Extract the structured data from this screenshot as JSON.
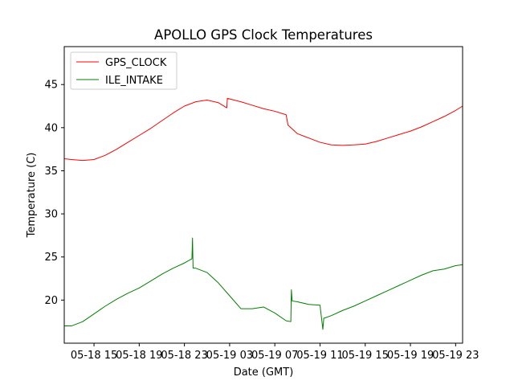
{
  "chart_data": {
    "type": "line",
    "title": "APOLLO GPS Clock Temperatures",
    "xlabel": "Date (GMT)",
    "ylabel": "Temperature (C)",
    "xlim": [
      "05-18 12:22",
      "05-19 23:37"
    ],
    "ylim": [
      15.0,
      49.4
    ],
    "grid": false,
    "legend_position": "top-left",
    "x_ticks": [
      "05-18 15",
      "05-18 19",
      "05-18 23",
      "05-19 03",
      "05-19 07",
      "05-19 11",
      "05-19 15",
      "05-19 19",
      "05-19 23"
    ],
    "y_ticks": [
      "20",
      "25",
      "30",
      "35",
      "40",
      "45"
    ],
    "series": [
      {
        "name": "GPS_CLOCK",
        "color": "#ff0000",
        "x": [
          "05-18 12:22",
          "05-18 13:00",
          "05-18 14:00",
          "05-18 15:00",
          "05-18 16:00",
          "05-18 17:00",
          "05-18 18:00",
          "05-18 19:00",
          "05-18 20:00",
          "05-18 21:00",
          "05-18 22:00",
          "05-18 23:00",
          "05-19 00:00",
          "05-19 01:00",
          "05-19 02:00",
          "05-19 02:45",
          "05-19 02:48",
          "05-19 04:00",
          "05-19 05:00",
          "05-19 06:00",
          "05-19 07:00",
          "05-19 08:00",
          "05-19 08:10",
          "05-19 09:00",
          "05-19 10:00",
          "05-19 11:00",
          "05-19 12:00",
          "05-19 13:00",
          "05-19 14:00",
          "05-19 15:00",
          "05-19 16:00",
          "05-19 17:00",
          "05-19 18:00",
          "05-19 19:00",
          "05-19 20:00",
          "05-19 21:00",
          "05-19 22:00",
          "05-19 23:00",
          "05-19 23:37"
        ],
        "y": [
          36.4,
          36.3,
          36.2,
          36.3,
          36.8,
          37.5,
          38.3,
          39.1,
          39.9,
          40.8,
          41.7,
          42.5,
          43.0,
          43.2,
          42.9,
          42.3,
          43.4,
          43.0,
          42.6,
          42.2,
          41.9,
          41.5,
          40.3,
          39.3,
          38.8,
          38.3,
          38.0,
          37.95,
          38.0,
          38.1,
          38.4,
          38.8,
          39.2,
          39.6,
          40.1,
          40.7,
          41.3,
          42.0,
          42.5
        ]
      },
      {
        "name": "ILE_INTAKE",
        "color": "#008000",
        "x": [
          "05-18 12:22",
          "05-18 13:00",
          "05-18 14:00",
          "05-18 15:00",
          "05-18 16:00",
          "05-18 17:00",
          "05-18 18:00",
          "05-18 19:00",
          "05-18 20:00",
          "05-18 21:00",
          "05-18 22:00",
          "05-18 23:00",
          "05-18 23:40",
          "05-18 23:43",
          "05-18 23:46",
          "05-19 00:00",
          "05-19 01:00",
          "05-19 02:00",
          "05-19 03:00",
          "05-19 04:00",
          "05-19 05:00",
          "05-19 06:00",
          "05-19 07:00",
          "05-19 08:00",
          "05-19 08:25",
          "05-19 08:28",
          "05-19 08:32",
          "05-19 09:00",
          "05-19 10:00",
          "05-19 11:00",
          "05-19 11:15",
          "05-19 11:20",
          "05-19 11:22",
          "05-19 12:00",
          "05-19 13:00",
          "05-19 14:00",
          "05-19 15:00",
          "05-19 16:00",
          "05-19 17:00",
          "05-19 18:00",
          "05-19 19:00",
          "05-19 20:00",
          "05-19 21:00",
          "05-19 22:00",
          "05-19 23:00",
          "05-19 23:37"
        ],
        "y": [
          17.0,
          17.0,
          17.5,
          18.4,
          19.3,
          20.1,
          20.8,
          21.4,
          22.2,
          23.0,
          23.7,
          24.3,
          24.8,
          27.2,
          23.7,
          23.7,
          23.2,
          22.0,
          20.5,
          19.0,
          19.0,
          19.2,
          18.5,
          17.6,
          17.5,
          21.2,
          19.9,
          19.8,
          19.5,
          19.4,
          16.6,
          17.9,
          17.9,
          18.2,
          18.8,
          19.3,
          19.9,
          20.5,
          21.1,
          21.7,
          22.3,
          22.9,
          23.4,
          23.6,
          24.0,
          24.1
        ]
      }
    ]
  }
}
